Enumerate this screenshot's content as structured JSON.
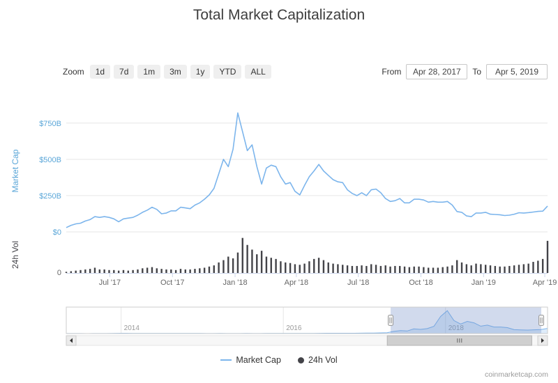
{
  "title": "Total Market Capitalization",
  "toolbar": {
    "zoom_label": "Zoom",
    "zoom_buttons": [
      "1d",
      "7d",
      "1m",
      "3m",
      "1y",
      "YTD",
      "ALL"
    ],
    "from_label": "From",
    "from_value": "Apr 28, 2017",
    "to_label": "To",
    "to_value": "Apr 5, 2019"
  },
  "chart_data": {
    "type": "line",
    "title": "Total Market Capitalization",
    "x_range": [
      "Apr 28, 2017",
      "Apr 5, 2019"
    ],
    "ylabel": "Market Cap",
    "ylabel2": "24h Vol",
    "unit": "USD billions",
    "ylim": [
      0,
      840
    ],
    "ytick_values": [
      0,
      250,
      500,
      750
    ],
    "ytick_labels": [
      "$0",
      "$250B",
      "$500B",
      "$750B"
    ],
    "vol_tick_labels": [
      "0"
    ],
    "vol_max": 62,
    "xticks": [
      {
        "t": 0.0905,
        "label": "Jul '17"
      },
      {
        "t": 0.2207,
        "label": "Oct '17"
      },
      {
        "t": 0.3508,
        "label": "Jan '18"
      },
      {
        "t": 0.4781,
        "label": "Apr '18"
      },
      {
        "t": 0.6068,
        "label": "Jul '18"
      },
      {
        "t": 0.7369,
        "label": "Oct '18"
      },
      {
        "t": 0.8671,
        "label": "Jan '19"
      },
      {
        "t": 0.9943,
        "label": "Apr '19"
      }
    ],
    "series": [
      {
        "name": "Market Cap",
        "color": "#7cb5ec",
        "values": [
          30,
          45,
          55,
          60,
          75,
          85,
          105,
          100,
          105,
          100,
          90,
          70,
          90,
          95,
          100,
          115,
          135,
          150,
          170,
          155,
          125,
          130,
          145,
          145,
          170,
          165,
          160,
          185,
          200,
          225,
          255,
          300,
          400,
          500,
          450,
          570,
          820,
          690,
          560,
          600,
          450,
          330,
          440,
          460,
          450,
          380,
          330,
          340,
          280,
          255,
          320,
          380,
          420,
          465,
          420,
          390,
          360,
          345,
          340,
          290,
          265,
          250,
          270,
          250,
          290,
          295,
          270,
          230,
          210,
          215,
          230,
          200,
          200,
          225,
          225,
          220,
          205,
          210,
          205,
          205,
          210,
          185,
          140,
          135,
          110,
          105,
          130,
          130,
          135,
          122,
          120,
          118,
          113,
          115,
          122,
          132,
          130,
          133,
          137,
          141,
          143,
          178
        ]
      },
      {
        "name": "24h Vol",
        "color": "#434348",
        "values": [
          2,
          3,
          4,
          5,
          6,
          7,
          9,
          6,
          6,
          5,
          5,
          4,
          5,
          4,
          5,
          6,
          8,
          9,
          10,
          8,
          7,
          6,
          6,
          5,
          7,
          6,
          6,
          7,
          8,
          9,
          11,
          13,
          18,
          22,
          28,
          25,
          35,
          60,
          48,
          40,
          32,
          38,
          28,
          26,
          24,
          20,
          18,
          17,
          15,
          14,
          16,
          20,
          24,
          26,
          22,
          18,
          16,
          15,
          14,
          13,
          12,
          12,
          13,
          12,
          15,
          14,
          12,
          13,
          11,
          12,
          12,
          11,
          10,
          11,
          11,
          10,
          9,
          9,
          9,
          10,
          11,
          13,
          22,
          18,
          15,
          13,
          16,
          15,
          14,
          13,
          12,
          11,
          11,
          12,
          13,
          14,
          15,
          16,
          19,
          21,
          24,
          55
        ]
      }
    ],
    "navigator": {
      "x_range": [
        "Apr 2013",
        "Apr 2019"
      ],
      "year_ticks": [
        {
          "t": 0.114,
          "label": "2014"
        },
        {
          "t": 0.451,
          "label": "2016"
        },
        {
          "t": 0.788,
          "label": "2018"
        }
      ],
      "selection": [
        0.674,
        0.987
      ],
      "values": [
        1.5,
        1.6,
        1.4,
        1.1,
        1.4,
        1.5,
        1.8,
        4,
        10,
        10,
        8,
        8,
        6.5,
        6.5,
        8,
        7.5,
        6.5,
        5.5,
        4.8,
        5,
        4.5,
        3.5,
        3.5,
        3.8,
        3.5,
        3.5,
        3.6,
        4,
        3.4,
        3.5,
        4,
        4.8,
        6.5,
        6,
        7,
        7,
        7.5,
        8,
        10.5,
        11,
        11,
        11.5,
        12,
        12.5,
        14,
        16,
        19,
        24,
        30,
        75,
        100,
        90,
        160,
        145,
        170,
        250,
        590,
        790,
        450,
        330,
        420,
        370,
        255,
        290,
        225,
        225,
        205,
        135,
        125,
        120,
        130,
        140,
        178
      ]
    }
  },
  "legend": [
    {
      "label": "Market Cap",
      "color": "#7cb5ec",
      "symbol": "line"
    },
    {
      "label": "24h Vol",
      "color": "#434348",
      "symbol": "circle"
    }
  ],
  "watermark": "coinmarketcap.com",
  "colors": {
    "market_cap": "#7cb5ec",
    "volume": "#434348",
    "axis_blue": "#5aa6d8",
    "grid": "#e6e6e6",
    "axis_line": "#ccd6eb",
    "nav_mask": "rgba(102,133,194,0.3)"
  }
}
